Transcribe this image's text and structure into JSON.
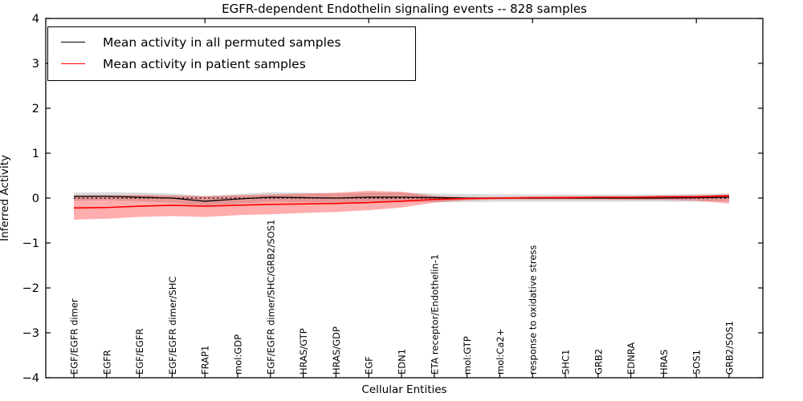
{
  "legend": {
    "items": [
      {
        "label": "Mean activity in all permuted samples",
        "color": "#000000"
      },
      {
        "label": "Mean activity in patient samples",
        "color": "#ff0000"
      }
    ],
    "position": "upper left"
  },
  "chart_data": {
    "type": "line",
    "title": "EGFR-dependent Endothelin signaling events -- 828 samples",
    "xlabel": "Cellular Entities",
    "ylabel": "Inferred Activity",
    "ylim": [
      -4,
      4
    ],
    "yticks": [
      4,
      3,
      2,
      1,
      0,
      -1,
      -2,
      -3,
      -4
    ],
    "grid": false,
    "zero_line": {
      "show": true,
      "style": "dotted",
      "color": "#000000"
    },
    "x_tick_label_rotation": 90,
    "top_axis_tick_indices": [
      4,
      9,
      14,
      19
    ],
    "categories": [
      "EGF/EGFR dimer",
      "EGFR",
      "EGF/EGFR",
      "EGF/EGFR dimer/SHC",
      "FRAP1",
      "mol:GDP",
      "EGF/EGFR dimer/SHC/GRB2/SOS1",
      "HRAS/GTP",
      "HRAS/GDP",
      "EGF",
      "EDN1",
      "ETA receptor/Endothelin-1",
      "mol:GTP",
      "mol:Ca2+",
      "response to oxidative stress",
      "SHC1",
      "GRB2",
      "EDNRA",
      "HRAS",
      "SOS1",
      "GRB2/SOS1"
    ],
    "series": [
      {
        "name": "Mean activity in all permuted samples",
        "color": "#000000",
        "band_color": "#000000",
        "band_opacity": 0.15,
        "values": [
          0.04,
          0.04,
          0.02,
          0.0,
          -0.07,
          -0.02,
          0.02,
          0.01,
          0.0,
          0.02,
          0.02,
          0.01,
          0.0,
          0.0,
          0.0,
          0.0,
          0.0,
          0.0,
          0.0,
          0.01,
          0.02
        ],
        "band_upper": [
          0.12,
          0.13,
          0.12,
          0.1,
          0.05,
          0.09,
          0.13,
          0.12,
          0.1,
          0.12,
          0.12,
          0.1,
          0.09,
          0.08,
          0.08,
          0.08,
          0.08,
          0.08,
          0.08,
          0.09,
          0.1
        ],
        "band_lower": [
          -0.06,
          -0.05,
          -0.07,
          -0.1,
          -0.17,
          -0.12,
          -0.08,
          -0.09,
          -0.1,
          -0.08,
          -0.08,
          -0.09,
          -0.09,
          -0.08,
          -0.08,
          -0.08,
          -0.08,
          -0.08,
          -0.08,
          -0.08,
          -0.07
        ]
      },
      {
        "name": "Mean activity in patient samples",
        "color": "#ff0000",
        "band_color": "#ff0000",
        "band_opacity": 0.32,
        "values": [
          -0.22,
          -0.21,
          -0.18,
          -0.16,
          -0.18,
          -0.16,
          -0.14,
          -0.13,
          -0.12,
          -0.1,
          -0.07,
          -0.03,
          -0.01,
          0.0,
          0.01,
          0.01,
          0.02,
          0.02,
          0.03,
          0.03,
          0.05
        ],
        "band_upper": [
          0.06,
          0.06,
          0.07,
          0.06,
          0.04,
          0.06,
          0.08,
          0.1,
          0.12,
          0.16,
          0.14,
          0.05,
          0.02,
          0.02,
          0.03,
          0.04,
          0.04,
          0.04,
          0.05,
          0.06,
          0.08
        ],
        "band_lower": [
          -0.48,
          -0.46,
          -0.42,
          -0.4,
          -0.42,
          -0.38,
          -0.36,
          -0.33,
          -0.31,
          -0.27,
          -0.21,
          -0.1,
          -0.05,
          -0.03,
          -0.03,
          -0.03,
          -0.03,
          -0.04,
          -0.04,
          -0.06,
          -0.12
        ]
      }
    ]
  }
}
